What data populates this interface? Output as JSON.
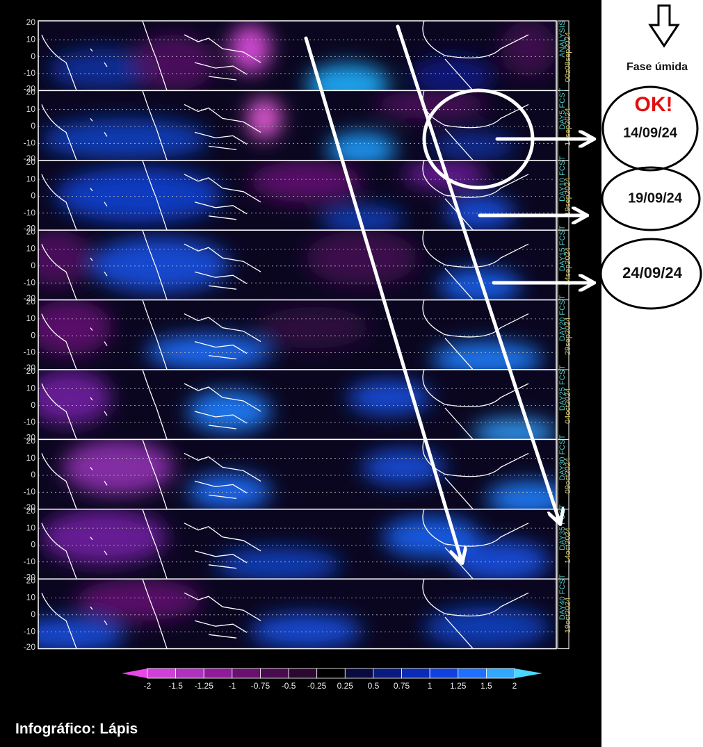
{
  "panels": [
    {
      "label": "ANALYSIS",
      "date": "00z08sep2024"
    },
    {
      "label": "DAY5 FCST",
      "date": "14sep2024"
    },
    {
      "label": "DAY10 FCST",
      "date": "19sep2024"
    },
    {
      "label": "DAY15 FCST",
      "date": "24sep2024"
    },
    {
      "label": "DAY20 FCST",
      "date": "29sep2024"
    },
    {
      "label": "DAY25 FCST",
      "date": "04oct2024"
    },
    {
      "label": "DAY30 FCST",
      "date": "09oct2024"
    },
    {
      "label": "DAY35 FCST",
      "date": "14oct2024"
    },
    {
      "label": "DAY40 FCST",
      "date": "19oct2024"
    }
  ],
  "lat_labels": [
    "20",
    "10",
    "0",
    "-10",
    "-20"
  ],
  "colorbar": {
    "labels": [
      "-2",
      "-1.5",
      "-1.25",
      "-1",
      "-0.75",
      "-0.5",
      "-0.25",
      "0.25",
      "0.5",
      "0.75",
      "1",
      "1.25",
      "1.5",
      "2"
    ],
    "colors": [
      "#e848e8",
      "#d040d8",
      "#b030c0",
      "#901a9a",
      "#6a1070",
      "#4a0a50",
      "#2c0830",
      "#000000",
      "#0a0a40",
      "#0a1a80",
      "#0a2ab8",
      "#1040e0",
      "#2070ff",
      "#30a8ff",
      "#48d8ff"
    ]
  },
  "annotations": {
    "phase": "Fase úmida",
    "ok": "OK!",
    "dates": [
      "14/09/24",
      "19/09/24",
      "24/09/24"
    ]
  },
  "credit": "Infográfico: Lápis"
}
